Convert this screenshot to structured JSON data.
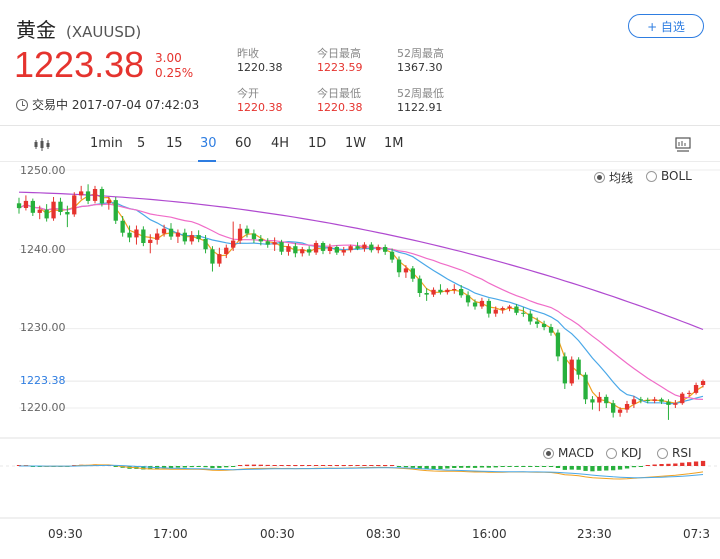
{
  "header": {
    "name": "黄金",
    "symbol": "(XAUUSD)",
    "watch_button": "+ 自选",
    "price": "1223.38",
    "change": "3.00",
    "change_pct": "0.25%",
    "status": "交易中 2017-07-04 07:42:03",
    "stats": [
      {
        "label": "昨收",
        "value": "1220.38",
        "color": "normal"
      },
      {
        "label": "今日最高",
        "value": "1223.59",
        "color": "red"
      },
      {
        "label": "52周最高",
        "value": "1367.30",
        "color": "normal"
      },
      {
        "label": "今开",
        "value": "1220.38",
        "color": "red"
      },
      {
        "label": "今日最低",
        "value": "1220.38",
        "color": "red"
      },
      {
        "label": "52周最低",
        "value": "1122.91",
        "color": "normal"
      }
    ]
  },
  "tabs": [
    "1min",
    "5",
    "15",
    "30",
    "60",
    "4H",
    "1D",
    "1W",
    "1M"
  ],
  "active_tab": "30",
  "main_indicators": [
    "均线",
    "BOLL"
  ],
  "main_indicator_selected": "均线",
  "sub_indicators": [
    "MACD",
    "KDJ",
    "RSI"
  ],
  "sub_indicator_selected": "MACD",
  "y_axis": {
    "labels": [
      "1250.00",
      "1240.00",
      "1230.00",
      "1220.00"
    ],
    "current": "1223.38"
  },
  "x_axis": [
    "09:30",
    "17:00",
    "00:30",
    "08:30",
    "16:00",
    "23:30",
    "07:3"
  ],
  "colors": {
    "up": "#e5332e",
    "down": "#27b03c",
    "accent": "#2e7de1",
    "ma_short": "#f0a020",
    "ma_mid": "#4aa8e8",
    "ma_pink": "#f06cc8",
    "ma_long": "#b04ad0"
  },
  "chart_data": {
    "type": "candlestick",
    "ylim": [
      1217,
      1251
    ],
    "candles": [
      [
        1245.8,
        1246.5,
        1244.5,
        1245.2
      ],
      [
        1245.2,
        1246.8,
        1244.9,
        1246.1
      ],
      [
        1246.1,
        1246.4,
        1244.2,
        1244.6
      ],
      [
        1244.6,
        1245.5,
        1243.8,
        1245.0
      ],
      [
        1245.0,
        1245.7,
        1243.5,
        1243.9
      ],
      [
        1243.9,
        1246.6,
        1243.6,
        1246.0
      ],
      [
        1246.0,
        1246.5,
        1244.3,
        1244.7
      ],
      [
        1244.7,
        1245.5,
        1242.8,
        1244.4
      ],
      [
        1244.4,
        1247.2,
        1244.1,
        1246.8
      ],
      [
        1246.8,
        1248.0,
        1246.3,
        1247.3
      ],
      [
        1247.3,
        1248.2,
        1245.7,
        1246.1
      ],
      [
        1246.1,
        1248.0,
        1245.8,
        1247.6
      ],
      [
        1247.6,
        1247.9,
        1245.4,
        1245.8
      ],
      [
        1245.8,
        1246.6,
        1245.0,
        1246.2
      ],
      [
        1246.2,
        1246.6,
        1243.2,
        1243.6
      ],
      [
        1243.6,
        1244.2,
        1241.6,
        1242.1
      ],
      [
        1242.1,
        1243.0,
        1240.9,
        1241.5
      ],
      [
        1241.5,
        1243.0,
        1240.6,
        1242.5
      ],
      [
        1242.5,
        1242.9,
        1240.4,
        1240.8
      ],
      [
        1240.8,
        1241.9,
        1239.5,
        1241.2
      ],
      [
        1241.2,
        1242.6,
        1240.6,
        1242.0
      ],
      [
        1242.0,
        1243.1,
        1241.6,
        1242.6
      ],
      [
        1242.6,
        1243.3,
        1241.2,
        1241.6
      ],
      [
        1241.6,
        1242.5,
        1240.8,
        1242.1
      ],
      [
        1242.1,
        1242.6,
        1240.6,
        1241.0
      ],
      [
        1241.0,
        1242.3,
        1240.6,
        1241.8
      ],
      [
        1241.8,
        1242.4,
        1240.9,
        1241.3
      ],
      [
        1241.3,
        1241.8,
        1239.5,
        1240.0
      ],
      [
        1240.0,
        1240.4,
        1237.2,
        1238.2
      ],
      [
        1238.2,
        1240.2,
        1237.8,
        1239.4
      ],
      [
        1239.4,
        1240.6,
        1238.9,
        1240.2
      ],
      [
        1240.2,
        1243.5,
        1239.8,
        1241.1
      ],
      [
        1241.1,
        1243.2,
        1240.7,
        1242.6
      ],
      [
        1242.6,
        1243.0,
        1241.5,
        1242.0
      ],
      [
        1242.0,
        1242.5,
        1240.8,
        1241.3
      ],
      [
        1241.3,
        1241.8,
        1240.5,
        1241.0
      ],
      [
        1241.0,
        1241.4,
        1240.2,
        1240.6
      ],
      [
        1240.6,
        1241.5,
        1239.8,
        1240.9
      ],
      [
        1240.9,
        1241.2,
        1239.3,
        1239.7
      ],
      [
        1239.7,
        1240.7,
        1239.2,
        1240.4
      ],
      [
        1240.4,
        1240.8,
        1239.0,
        1239.5
      ],
      [
        1239.5,
        1240.3,
        1239.1,
        1240.0
      ],
      [
        1240.0,
        1240.4,
        1239.2,
        1239.6
      ],
      [
        1239.6,
        1241.1,
        1239.3,
        1240.8
      ],
      [
        1240.8,
        1241.0,
        1239.4,
        1239.8
      ],
      [
        1239.8,
        1240.7,
        1239.4,
        1240.3
      ],
      [
        1240.3,
        1240.5,
        1239.3,
        1239.6
      ],
      [
        1239.6,
        1240.3,
        1239.2,
        1239.9
      ],
      [
        1239.9,
        1240.6,
        1239.6,
        1240.4
      ],
      [
        1240.4,
        1240.9,
        1239.9,
        1240.1
      ],
      [
        1240.1,
        1240.9,
        1239.7,
        1240.6
      ],
      [
        1240.6,
        1240.9,
        1239.6,
        1239.9
      ],
      [
        1239.9,
        1240.6,
        1239.5,
        1240.3
      ],
      [
        1240.3,
        1240.6,
        1239.3,
        1239.7
      ],
      [
        1239.7,
        1240.1,
        1238.3,
        1238.7
      ],
      [
        1238.7,
        1239.1,
        1236.5,
        1237.1
      ],
      [
        1237.1,
        1238.0,
        1236.4,
        1237.6
      ],
      [
        1237.6,
        1237.9,
        1235.9,
        1236.3
      ],
      [
        1236.3,
        1236.7,
        1234.0,
        1234.5
      ],
      [
        1234.5,
        1235.1,
        1233.5,
        1234.3
      ],
      [
        1234.3,
        1235.2,
        1234.0,
        1234.9
      ],
      [
        1234.9,
        1235.6,
        1234.3,
        1234.6
      ],
      [
        1234.6,
        1235.1,
        1234.3,
        1234.9
      ],
      [
        1234.9,
        1235.6,
        1234.4,
        1235.0
      ],
      [
        1235.0,
        1235.5,
        1233.9,
        1234.2
      ],
      [
        1234.2,
        1234.7,
        1232.8,
        1233.3
      ],
      [
        1233.3,
        1233.7,
        1232.4,
        1232.8
      ],
      [
        1232.8,
        1233.9,
        1232.5,
        1233.5
      ],
      [
        1233.5,
        1233.8,
        1231.4,
        1231.9
      ],
      [
        1231.9,
        1232.8,
        1231.5,
        1232.4
      ],
      [
        1232.4,
        1232.8,
        1231.9,
        1232.6
      ],
      [
        1232.6,
        1233.0,
        1232.2,
        1232.8
      ],
      [
        1232.8,
        1233.1,
        1231.7,
        1232.0
      ],
      [
        1232.0,
        1232.7,
        1231.5,
        1231.9
      ],
      [
        1231.9,
        1232.3,
        1230.5,
        1230.9
      ],
      [
        1230.9,
        1231.4,
        1230.1,
        1230.6
      ],
      [
        1230.6,
        1231.0,
        1229.8,
        1230.2
      ],
      [
        1230.2,
        1230.6,
        1229.1,
        1229.5
      ],
      [
        1229.5,
        1229.9,
        1225.9,
        1226.5
      ],
      [
        1226.5,
        1227.0,
        1222.4,
        1223.1
      ],
      [
        1223.1,
        1226.5,
        1222.8,
        1226.1
      ],
      [
        1226.1,
        1226.4,
        1223.6,
        1224.2
      ],
      [
        1224.2,
        1224.5,
        1220.5,
        1221.1
      ],
      [
        1221.1,
        1221.5,
        1219.8,
        1220.7
      ],
      [
        1220.7,
        1222.0,
        1219.6,
        1221.4
      ],
      [
        1221.4,
        1221.7,
        1220.0,
        1220.6
      ],
      [
        1220.6,
        1221.0,
        1218.8,
        1219.4
      ],
      [
        1219.4,
        1220.1,
        1218.9,
        1219.8
      ],
      [
        1219.8,
        1220.9,
        1219.4,
        1220.5
      ],
      [
        1220.5,
        1221.5,
        1220.0,
        1221.1
      ],
      [
        1221.1,
        1221.4,
        1220.6,
        1221.0
      ],
      [
        1221.0,
        1221.3,
        1220.6,
        1220.9
      ],
      [
        1220.9,
        1221.4,
        1220.6,
        1221.1
      ],
      [
        1221.1,
        1221.3,
        1220.5,
        1220.8
      ],
      [
        1220.8,
        1221.1,
        1218.5,
        1220.4
      ],
      [
        1220.4,
        1221.0,
        1220.0,
        1220.6
      ],
      [
        1220.6,
        1222.0,
        1220.4,
        1221.8
      ],
      [
        1221.8,
        1222.2,
        1221.5,
        1221.9
      ],
      [
        1221.9,
        1223.2,
        1221.7,
        1222.9
      ],
      [
        1222.9,
        1223.6,
        1222.6,
        1223.4
      ]
    ]
  }
}
